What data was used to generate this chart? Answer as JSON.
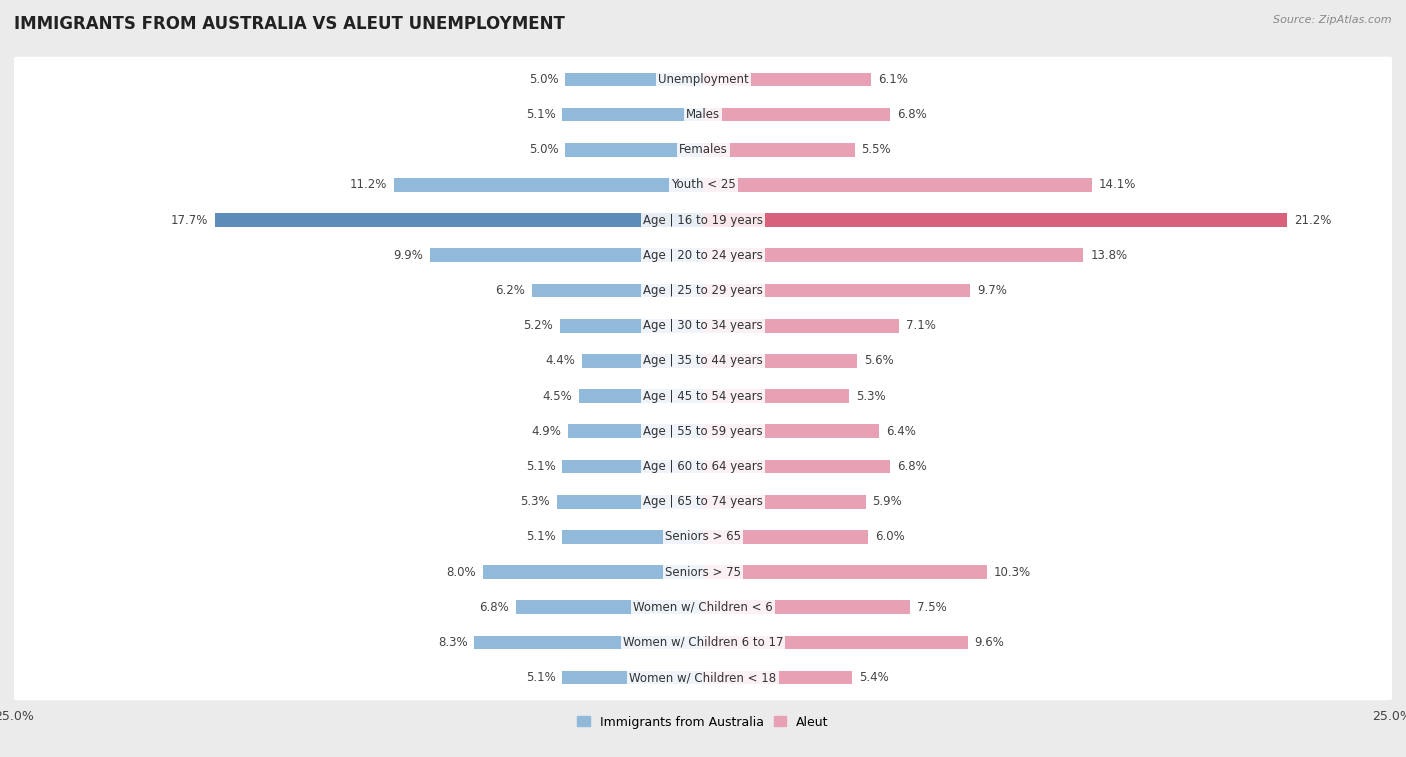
{
  "title": "IMMIGRANTS FROM AUSTRALIA VS ALEUT UNEMPLOYMENT",
  "source": "Source: ZipAtlas.com",
  "categories": [
    "Unemployment",
    "Males",
    "Females",
    "Youth < 25",
    "Age | 16 to 19 years",
    "Age | 20 to 24 years",
    "Age | 25 to 29 years",
    "Age | 30 to 34 years",
    "Age | 35 to 44 years",
    "Age | 45 to 54 years",
    "Age | 55 to 59 years",
    "Age | 60 to 64 years",
    "Age | 65 to 74 years",
    "Seniors > 65",
    "Seniors > 75",
    "Women w/ Children < 6",
    "Women w/ Children 6 to 17",
    "Women w/ Children < 18"
  ],
  "left_values": [
    5.0,
    5.1,
    5.0,
    11.2,
    17.7,
    9.9,
    6.2,
    5.2,
    4.4,
    4.5,
    4.9,
    5.1,
    5.3,
    5.1,
    8.0,
    6.8,
    8.3,
    5.1
  ],
  "right_values": [
    6.1,
    6.8,
    5.5,
    14.1,
    21.2,
    13.8,
    9.7,
    7.1,
    5.6,
    5.3,
    6.4,
    6.8,
    5.9,
    6.0,
    10.3,
    7.5,
    9.6,
    5.4
  ],
  "left_color": "#91b9d9",
  "right_color": "#e8a0b4",
  "left_label": "Immigrants from Australia",
  "right_label": "Aleut",
  "axis_max": 25.0,
  "bg_color": "#ebebeb",
  "bar_bg_color": "#ffffff",
  "title_fontsize": 12,
  "label_fontsize": 8.5,
  "value_fontsize": 8.5,
  "tick_fontsize": 9,
  "highlight_row": 4,
  "highlight_left_color": "#5b8db8",
  "highlight_right_color": "#d9607a",
  "highlight_left_text": "#ffffff",
  "highlight_right_text": "#ffffff"
}
